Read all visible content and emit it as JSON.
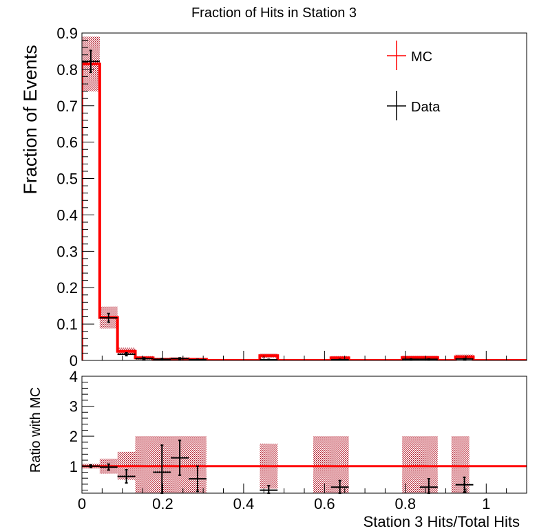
{
  "chart_data": [
    {
      "panel": "main",
      "type": "histogram",
      "title": "Fraction of Hits in Station 3",
      "ylabel": "Fraction of Events",
      "xlim": [
        0,
        1.1
      ],
      "ylim": [
        0,
        0.9
      ],
      "x_ticks": [
        0,
        0.2,
        0.4,
        0.6,
        0.8,
        1
      ],
      "x_tick_labels": [
        "0",
        "0.2",
        "0.4",
        "0.6",
        "0.8",
        "1"
      ],
      "y_ticks": [
        0,
        0.1,
        0.2,
        0.3,
        0.4,
        0.5,
        0.6,
        0.7,
        0.8,
        0.9
      ],
      "y_tick_labels": [
        "0",
        "0.1",
        "0.2",
        "0.3",
        "0.4",
        "0.5",
        "0.6",
        "0.7",
        "0.8",
        "0.9"
      ],
      "legend_position": "top-right",
      "bin_width": 0.044,
      "bin_lows": [
        0,
        0.044,
        0.088,
        0.132,
        0.176,
        0.22,
        0.264,
        0.308,
        0.352,
        0.396,
        0.44,
        0.484,
        0.528,
        0.572,
        0.616,
        0.66,
        0.704,
        0.748,
        0.792,
        0.836,
        0.88,
        0.924,
        0.968,
        1.012,
        1.056
      ],
      "series": [
        {
          "name": "MC",
          "style": "step",
          "color": "#ff0000",
          "values": [
            0.815,
            0.118,
            0.025,
            0.007,
            0.003,
            0.004,
            0.003,
            0,
            0,
            0,
            0.013,
            0,
            0,
            0,
            0.007,
            0,
            0,
            0,
            0.008,
            0.008,
            0,
            0.01,
            0,
            0,
            0
          ],
          "uncertainty": [
            0.075,
            0.03,
            0.01,
            0.005,
            0.004,
            0.004,
            0.003,
            0,
            0,
            0,
            0.006,
            0,
            0,
            0,
            0.005,
            0,
            0,
            0,
            0.005,
            0.005,
            0,
            0.006,
            0,
            0,
            0
          ]
        },
        {
          "name": "Data",
          "style": "points",
          "color": "#000000",
          "values": [
            0.822,
            0.117,
            0.017,
            0.005,
            0.003,
            0.005,
            0.002,
            null,
            null,
            null,
            0.002,
            null,
            null,
            null,
            0.002,
            null,
            null,
            null,
            0.003,
            0.003,
            null,
            0.004,
            null,
            null,
            null
          ],
          "errors": [
            0.03,
            0.012,
            0.004,
            0.002,
            0.002,
            0.002,
            0.001,
            null,
            null,
            null,
            0.001,
            null,
            null,
            null,
            0.001,
            null,
            null,
            null,
            0.001,
            0.001,
            null,
            0.001,
            null,
            null,
            null
          ]
        }
      ]
    },
    {
      "panel": "ratio",
      "type": "scatter",
      "ylabel": "Ratio with MC",
      "xlabel": "Station 3 Hits/Total Hits",
      "xlim": [
        0,
        1.1
      ],
      "ylim": [
        0.1,
        4
      ],
      "x_ticks": [
        0,
        0.2,
        0.4,
        0.6,
        0.8,
        1
      ],
      "x_tick_labels": [
        "0",
        "0.2",
        "0.4",
        "0.6",
        "0.8",
        "1"
      ],
      "y_ticks": [
        1,
        2,
        3,
        4
      ],
      "y_tick_labels": [
        "1",
        "2",
        "3",
        "4"
      ],
      "reference_line": 1,
      "reference_color": "#ff0000",
      "x": [
        0.022,
        0.066,
        0.11,
        0.198,
        0.242,
        0.286,
        0.462,
        0.638,
        0.858,
        0.946
      ],
      "y": [
        1.0,
        0.97,
        0.66,
        0.8,
        1.28,
        0.58,
        0.2,
        0.3,
        0.3,
        0.38
      ],
      "y_errors": [
        0.04,
        0.1,
        0.22,
        0.9,
        0.58,
        0.42,
        0.15,
        0.22,
        0.28,
        0.25
      ],
      "band_bins": [
        {
          "x0": 0,
          "x1": 0.044,
          "lo": 0.92,
          "hi": 1.08
        },
        {
          "x0": 0.044,
          "x1": 0.088,
          "lo": 0.75,
          "hi": 1.25
        },
        {
          "x0": 0.088,
          "x1": 0.132,
          "lo": 0.55,
          "hi": 1.48
        },
        {
          "x0": 0.132,
          "x1": 0.308,
          "lo": 0.1,
          "hi": 2.0
        },
        {
          "x0": 0.44,
          "x1": 0.484,
          "lo": 0.25,
          "hi": 1.75
        },
        {
          "x0": 0.572,
          "x1": 0.66,
          "lo": 0.1,
          "hi": 2.0
        },
        {
          "x0": 0.792,
          "x1": 0.88,
          "lo": 0.1,
          "hi": 2.0
        },
        {
          "x0": 0.914,
          "x1": 0.958,
          "lo": 0.1,
          "hi": 2.0
        }
      ]
    }
  ]
}
